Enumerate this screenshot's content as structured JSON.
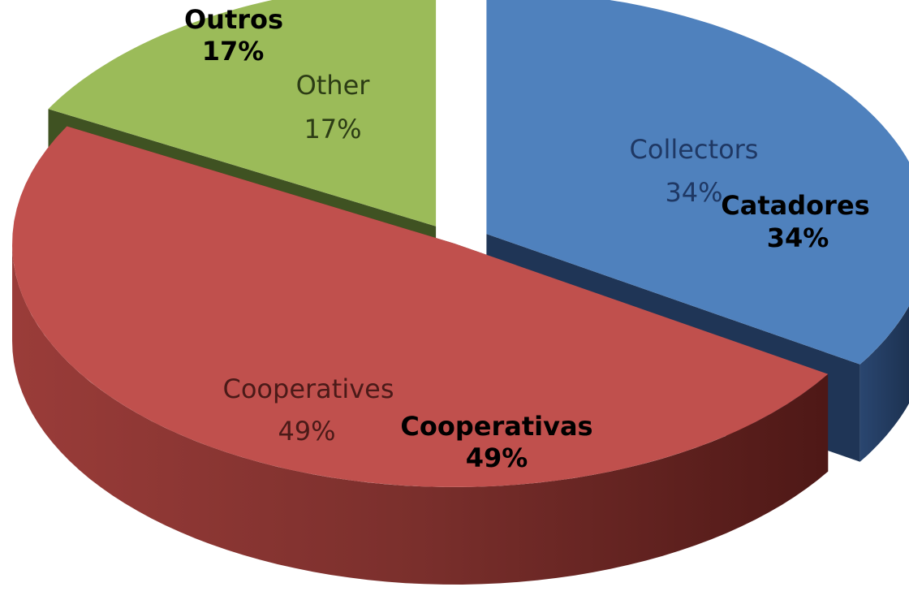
{
  "chart_data": {
    "type": "pie",
    "categories": [
      "Collectors",
      "Cooperatives",
      "Other"
    ],
    "values": [
      34,
      49,
      17
    ],
    "label_percent": [
      "34%",
      "49%",
      "17%"
    ],
    "category_labels_pt": [
      "Catadores",
      "Cooperativas",
      "Outros"
    ],
    "colors": {
      "top": [
        "#4f81bd",
        "#c0504d",
        "#9bbb59"
      ],
      "side": [
        "#1f3556",
        "#6b2422",
        "#3f5222"
      ],
      "label_en": [
        "#1f3864",
        "#4a1a18",
        "#2c3c15"
      ]
    },
    "title": "",
    "legend": "none",
    "exploded": true,
    "style": "3d"
  }
}
